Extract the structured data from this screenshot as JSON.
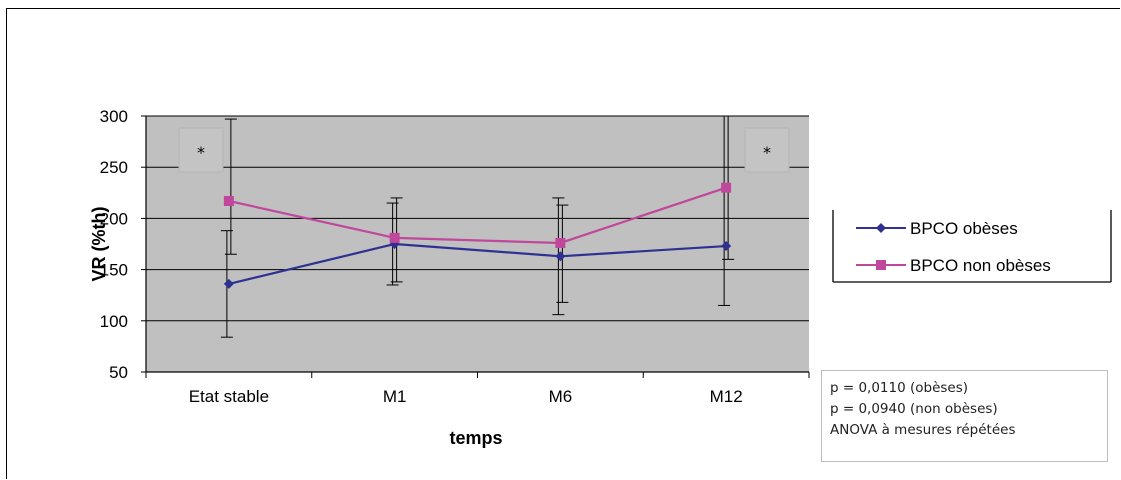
{
  "chart_data": {
    "type": "line",
    "title": "",
    "xlabel": "temps",
    "ylabel": "VR (%th)",
    "ylim": [
      50,
      300
    ],
    "yticks": [
      50,
      100,
      150,
      200,
      250,
      300
    ],
    "categories": [
      "Etat stable",
      "M1",
      "M6",
      "M12"
    ],
    "grid": true,
    "legend_position": "right",
    "series": [
      {
        "name": "BPCO obèses",
        "color": "#2e3192",
        "marker": "diamond",
        "values": [
          136,
          175,
          163,
          173
        ],
        "error_low": [
          84,
          135,
          106,
          115
        ],
        "error_high": [
          188,
          215,
          220,
          300
        ]
      },
      {
        "name": "BPCO non obèses",
        "color": "#c0479b",
        "marker": "square",
        "values": [
          217,
          181,
          176,
          230
        ],
        "error_low": [
          165,
          138,
          118,
          160
        ],
        "error_high": [
          297,
          220,
          213,
          300
        ]
      }
    ],
    "annotations": [
      {
        "text": "*",
        "category": "Etat stable"
      },
      {
        "text": "*",
        "category": "M12"
      }
    ]
  },
  "stats_box": {
    "line1": "p = 0,0110 (obèses)",
    "line2": "p = 0,0940 (non obèses)",
    "line3": "ANOVA à mesures répétées"
  }
}
